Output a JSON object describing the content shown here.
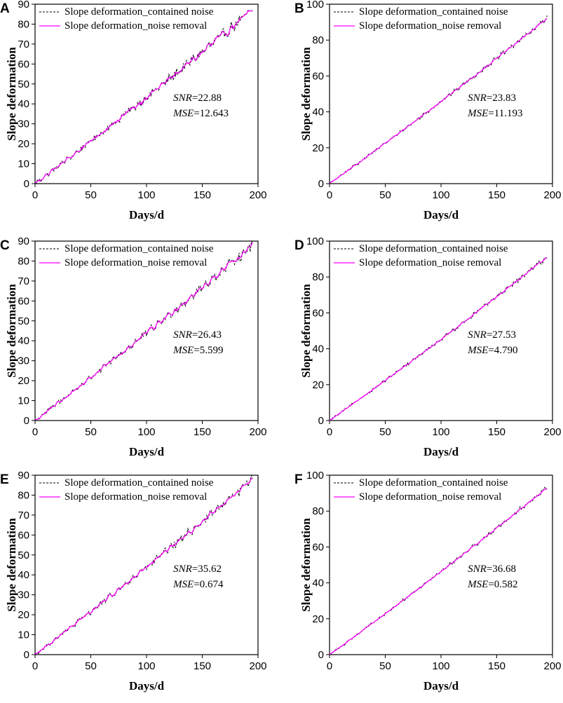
{
  "figure": {
    "panels": [
      "A",
      "B",
      "C",
      "D",
      "E",
      "F"
    ]
  },
  "chart_data": [
    {
      "panel": "A",
      "type": "line",
      "xlabel": "Days/d",
      "ylabel": "Slope deformation",
      "xlim": [
        0,
        200
      ],
      "ylim": [
        0,
        90
      ],
      "xticks": [
        0,
        50,
        100,
        150,
        200
      ],
      "yticks": [
        0,
        10,
        20,
        30,
        40,
        50,
        60,
        70,
        80,
        90
      ],
      "x_max": 195,
      "end_value": 87,
      "noise_amplitude": 2.6,
      "series": [
        {
          "name": "Slope deformation_contained noise",
          "color": "#000000",
          "dash": "dashed"
        },
        {
          "name": "Slope deformation_noise removal",
          "color": "#ff00ff",
          "dash": "solid"
        }
      ],
      "annotations": [
        {
          "label": "SNR",
          "value": "=22.88"
        },
        {
          "label": "MSE",
          "value": "=12.643"
        }
      ]
    },
    {
      "panel": "B",
      "type": "line",
      "xlabel": "Days/d",
      "ylabel": "Slope deformation",
      "xlim": [
        0,
        200
      ],
      "ylim": [
        0,
        100
      ],
      "xticks": [
        0,
        50,
        100,
        150,
        200
      ],
      "yticks": [
        0,
        20,
        40,
        60,
        80,
        100
      ],
      "x_max": 195,
      "end_value": 92,
      "noise_amplitude": 1.4,
      "series": [
        {
          "name": "Slope deformation_contained noise",
          "color": "#000000",
          "dash": "dashed"
        },
        {
          "name": "Slope deformation_noise removal",
          "color": "#ff00ff",
          "dash": "solid"
        }
      ],
      "annotations": [
        {
          "label": "SNR",
          "value": "=23.83"
        },
        {
          "label": "MSE",
          "value": "=11.193"
        }
      ]
    },
    {
      "panel": "C",
      "type": "line",
      "xlabel": "Days/d",
      "ylabel": "Slope deformation",
      "xlim": [
        0,
        200
      ],
      "ylim": [
        0,
        90
      ],
      "xticks": [
        0,
        50,
        100,
        150,
        200
      ],
      "yticks": [
        0,
        10,
        20,
        30,
        40,
        50,
        60,
        70,
        80,
        90
      ],
      "x_max": 195,
      "end_value": 88,
      "noise_amplitude": 2.4,
      "series": [
        {
          "name": "Slope deformation_contained noise",
          "color": "#000000",
          "dash": "dashed"
        },
        {
          "name": "Slope deformation_noise removal",
          "color": "#ff00ff",
          "dash": "solid"
        }
      ],
      "annotations": [
        {
          "label": "SNR",
          "value": "=26.43"
        },
        {
          "label": "MSE",
          "value": "=5.599"
        }
      ]
    },
    {
      "panel": "D",
      "type": "line",
      "xlabel": "Days/d",
      "ylabel": "Slope deformation",
      "xlim": [
        0,
        200
      ],
      "ylim": [
        0,
        100
      ],
      "xticks": [
        0,
        50,
        100,
        150,
        200
      ],
      "yticks": [
        0,
        20,
        40,
        60,
        80,
        100
      ],
      "x_max": 195,
      "end_value": 91,
      "noise_amplitude": 1.3,
      "series": [
        {
          "name": "Slope deformation_contained noise",
          "color": "#000000",
          "dash": "dashed"
        },
        {
          "name": "Slope deformation_noise removal",
          "color": "#ff00ff",
          "dash": "solid"
        }
      ],
      "annotations": [
        {
          "label": "SNR",
          "value": "=27.53"
        },
        {
          "label": "MSE",
          "value": "=4.790"
        }
      ]
    },
    {
      "panel": "E",
      "type": "line",
      "xlabel": "Days/d",
      "ylabel": "Slope deformation",
      "xlim": [
        0,
        200
      ],
      "ylim": [
        0,
        90
      ],
      "xticks": [
        0,
        50,
        100,
        150,
        200
      ],
      "yticks": [
        0,
        10,
        20,
        30,
        40,
        50,
        60,
        70,
        80,
        90
      ],
      "x_max": 195,
      "end_value": 88,
      "noise_amplitude": 2.2,
      "series": [
        {
          "name": "Slope deformation_contained noise",
          "color": "#000000",
          "dash": "dashed"
        },
        {
          "name": "Slope deformation_noise removal",
          "color": "#ff00ff",
          "dash": "solid"
        }
      ],
      "annotations": [
        {
          "label": "SNR",
          "value": "=35.62"
        },
        {
          "label": "MSE",
          "value": "=0.674"
        }
      ]
    },
    {
      "panel": "F",
      "type": "line",
      "xlabel": "Days/d",
      "ylabel": "Slope deformation",
      "xlim": [
        0,
        200
      ],
      "ylim": [
        0,
        100
      ],
      "xticks": [
        0,
        50,
        100,
        150,
        200
      ],
      "yticks": [
        0,
        20,
        40,
        60,
        80,
        100
      ],
      "x_max": 195,
      "end_value": 93,
      "noise_amplitude": 1.2,
      "series": [
        {
          "name": "Slope deformation_contained noise",
          "color": "#000000",
          "dash": "dashed"
        },
        {
          "name": "Slope deformation_noise removal",
          "color": "#ff00ff",
          "dash": "solid"
        }
      ],
      "annotations": [
        {
          "label": "SNR",
          "value": "=36.68"
        },
        {
          "label": "MSE",
          "value": "=0.582"
        }
      ]
    }
  ]
}
